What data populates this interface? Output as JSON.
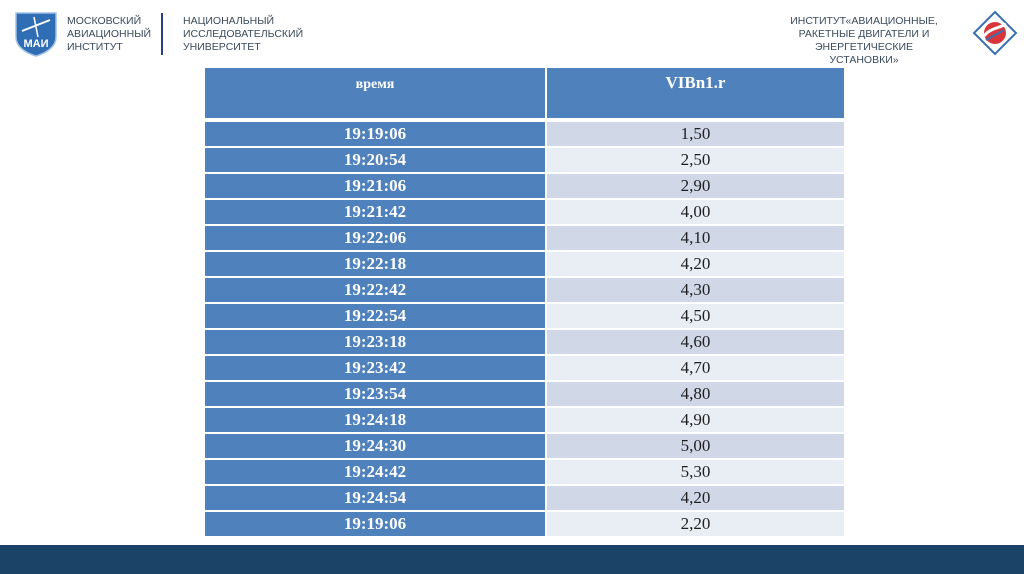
{
  "header": {
    "left_org": [
      "МОСКОВСКИЙ",
      "АВИАЦИОННЫЙ",
      "ИНСТИТУТ"
    ],
    "left_subtitle": [
      "НАЦИОНАЛЬНЫЙ",
      "ИССЛЕДОВАТЕЛЬСКИЙ",
      "УНИВЕРСИТЕТ"
    ],
    "right_org": [
      "ИНСТИТУТ«АВИАЦИОННЫЕ,",
      "РАКЕТНЫЕ ДВИГАТЕЛИ И",
      "ЭНЕРГЕТИЧЕСКИЕ",
      "УСТАНОВКИ»"
    ],
    "logo_left_text": "МАИ",
    "logo_left_icon": "mai-logo-icon",
    "logo_right_icon": "institute-logo-icon"
  },
  "table": {
    "columns": [
      "время",
      "VIBn1.r"
    ],
    "rows": [
      [
        "19:19:06",
        "1,50"
      ],
      [
        "19:20:54",
        "2,50"
      ],
      [
        "19:21:06",
        "2,90"
      ],
      [
        "19:21:42",
        "4,00"
      ],
      [
        "19:22:06",
        "4,10"
      ],
      [
        "19:22:18",
        "4,20"
      ],
      [
        "19:22:42",
        "4,30"
      ],
      [
        "19:22:54",
        "4,50"
      ],
      [
        "19:23:18",
        "4,60"
      ],
      [
        "19:23:42",
        "4,70"
      ],
      [
        "19:23:54",
        "4,80"
      ],
      [
        "19:24:18",
        "4,90"
      ],
      [
        "19:24:30",
        "5,00"
      ],
      [
        "19:24:42",
        "5,30"
      ],
      [
        "19:24:54",
        "4,20"
      ],
      [
        "19:19:06",
        "2,20"
      ]
    ]
  },
  "colors": {
    "header_blue": "#4f81bd",
    "row_light_1": "#d0d8e8",
    "row_light_2": "#e9edf4",
    "footer": "#1b4367"
  }
}
